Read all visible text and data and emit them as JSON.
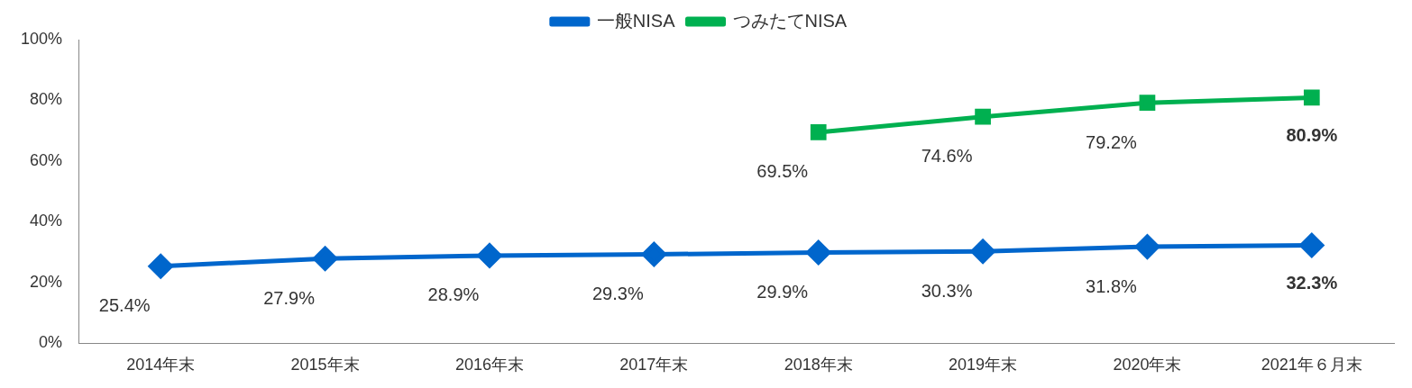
{
  "chart_data": {
    "type": "line",
    "categories": [
      "2014年末",
      "2015年末",
      "2016年末",
      "2017年末",
      "2018年末",
      "2019年末",
      "2020年末",
      "2021年６月末"
    ],
    "series": [
      {
        "name": "一般NISA",
        "color": "#0066cc",
        "marker": "diamond",
        "values": [
          25.4,
          27.9,
          28.9,
          29.3,
          29.9,
          30.3,
          31.8,
          32.3
        ],
        "value_labels": [
          "25.4%",
          "27.9%",
          "28.9%",
          "29.3%",
          "29.9%",
          "30.3%",
          "31.8%",
          "32.3%"
        ]
      },
      {
        "name": "つみたてNISA",
        "color": "#00b050",
        "marker": "square",
        "values": [
          null,
          null,
          null,
          null,
          69.5,
          74.6,
          79.2,
          80.9
        ],
        "value_labels": [
          null,
          null,
          null,
          null,
          "69.5%",
          "74.6%",
          "79.2%",
          "80.9%"
        ]
      }
    ],
    "ylim": [
      0,
      100
    ],
    "yticks": [
      {
        "value": 0,
        "label": "0%"
      },
      {
        "value": 20,
        "label": "20%"
      },
      {
        "value": 40,
        "label": "40%"
      },
      {
        "value": 60,
        "label": "60%"
      },
      {
        "value": 80,
        "label": "80%"
      },
      {
        "value": 100,
        "label": "100%"
      }
    ],
    "grid": false,
    "legend": "top"
  }
}
